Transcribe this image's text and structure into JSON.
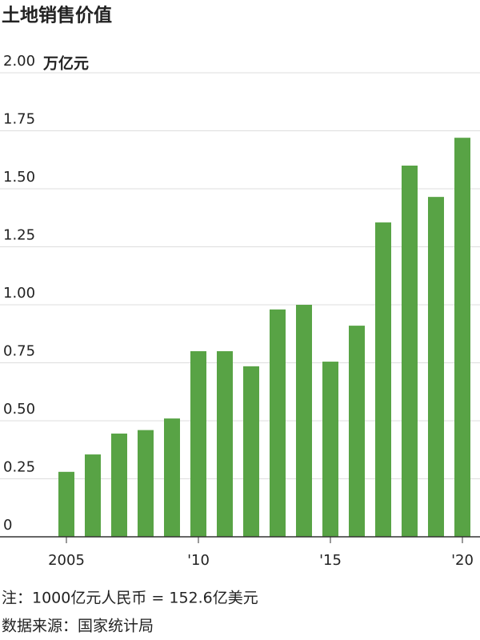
{
  "chart_data": {
    "type": "bar",
    "title": "土地销售价值",
    "y_axis_label": "万亿元",
    "categories": [
      "2005",
      null,
      null,
      null,
      null,
      "'10",
      null,
      null,
      null,
      null,
      "'15",
      null,
      null,
      null,
      null,
      "'20"
    ],
    "values": [
      0.28,
      0.355,
      0.445,
      0.46,
      0.51,
      0.8,
      0.8,
      0.735,
      0.98,
      1.0,
      0.755,
      0.91,
      1.355,
      1.6,
      1.465,
      1.72
    ],
    "color": "#58a345",
    "ylim": [
      0,
      2
    ],
    "yticks": [
      0,
      {
        "value": 0.25,
        "label": "0.25"
      },
      {
        "value": 0.5,
        "label": "0.50"
      },
      {
        "value": 0.75,
        "label": "0.75"
      },
      {
        "value": 1,
        "label": "1.00"
      },
      {
        "value": 1.25,
        "label": "1.25"
      },
      {
        "value": 1.5,
        "label": "1.50"
      },
      {
        "value": 1.75,
        "label": "1.75"
      },
      {
        "value": 2,
        "label": "2.00"
      }
    ],
    "grid": true,
    "note": "注：1000亿元人民币 = 152.6亿美元",
    "source": "数据来源：国家统计局"
  }
}
